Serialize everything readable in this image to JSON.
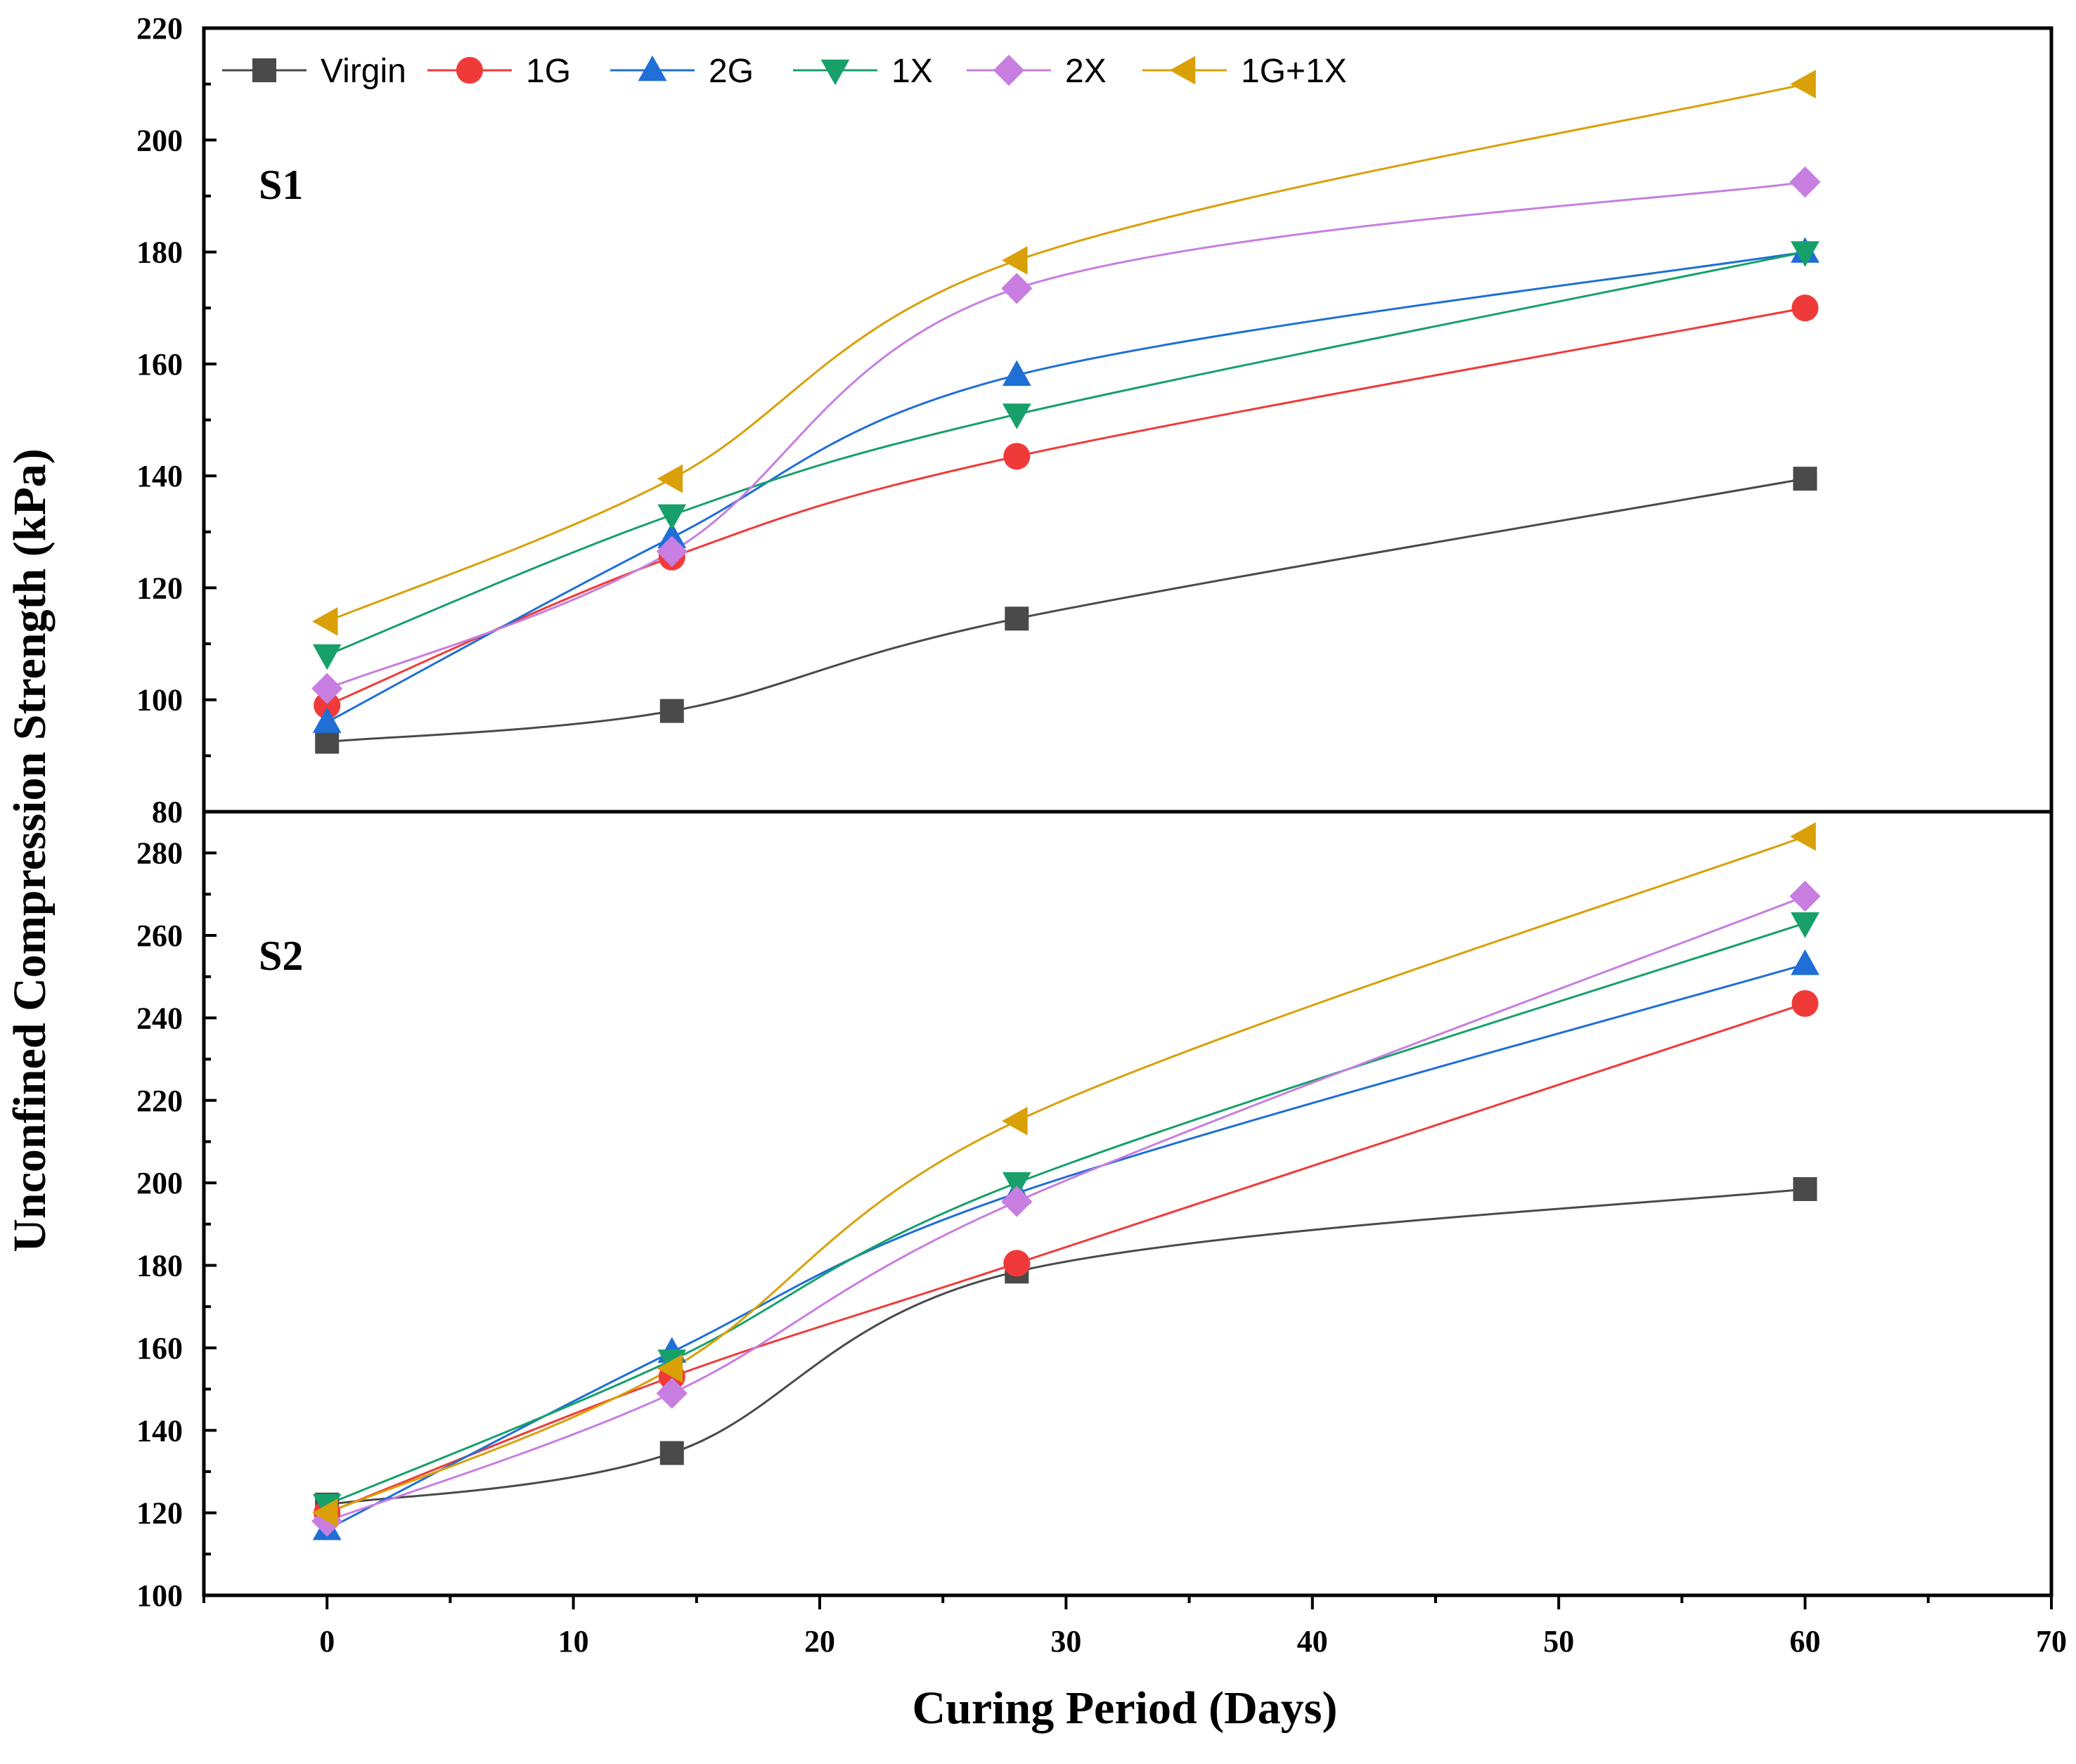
{
  "chart_data": {
    "type": "line",
    "xlabel": "Curing Period (Days)",
    "ylabel": "Unconfined Compression Strength (kPa)",
    "xlim": [
      -5,
      70
    ],
    "xticks": [
      0,
      10,
      20,
      30,
      40,
      50,
      60,
      70
    ],
    "x": [
      0,
      14,
      28,
      60
    ],
    "legend": [
      {
        "name": "Virgin",
        "color": "#4a4a4a",
        "marker": "square"
      },
      {
        "name": "1G",
        "color": "#f03a3a",
        "marker": "circle"
      },
      {
        "name": "2G",
        "color": "#1f6fd6",
        "marker": "triangle-up"
      },
      {
        "name": "1X",
        "color": "#17a06a",
        "marker": "triangle-down"
      },
      {
        "name": "2X",
        "color": "#c77ee0",
        "marker": "diamond"
      },
      {
        "name": "1G+1X",
        "color": "#d9a008",
        "marker": "triangle-left"
      }
    ],
    "panels": [
      {
        "label": "S1",
        "ylim": [
          80,
          220
        ],
        "yticks": [
          80,
          100,
          120,
          140,
          160,
          180,
          200,
          220
        ],
        "series": [
          {
            "name": "Virgin",
            "values": [
              92.5,
              98,
              114.5,
              139.5
            ]
          },
          {
            "name": "1G",
            "values": [
              99,
              125.5,
              143.5,
              170
            ]
          },
          {
            "name": "2G",
            "values": [
              96,
              129,
              158,
              180
            ]
          },
          {
            "name": "1X",
            "values": [
              108,
              133,
              151,
              180
            ]
          },
          {
            "name": "2X",
            "values": [
              102,
              126.5,
              173.5,
              192.5
            ]
          },
          {
            "name": "1G+1X",
            "values": [
              114,
              139.5,
              178.5,
              210
            ]
          }
        ]
      },
      {
        "label": "S2",
        "ylim": [
          100,
          290
        ],
        "yticks": [
          100,
          120,
          140,
          160,
          180,
          200,
          220,
          240,
          260,
          280
        ],
        "series": [
          {
            "name": "Virgin",
            "values": [
              122,
              134.5,
              178.5,
              198.5
            ]
          },
          {
            "name": "1G",
            "values": [
              120,
              153,
              180.5,
              243.5
            ]
          },
          {
            "name": "2G",
            "values": [
              116,
              159,
              197.5,
              253
            ]
          },
          {
            "name": "1X",
            "values": [
              122,
              157,
              200,
              263
            ]
          },
          {
            "name": "2X",
            "values": [
              118,
              149,
              195.5,
              269.5
            ]
          },
          {
            "name": "1G+1X",
            "values": [
              120,
              155,
              215,
              284
            ]
          }
        ]
      }
    ]
  }
}
